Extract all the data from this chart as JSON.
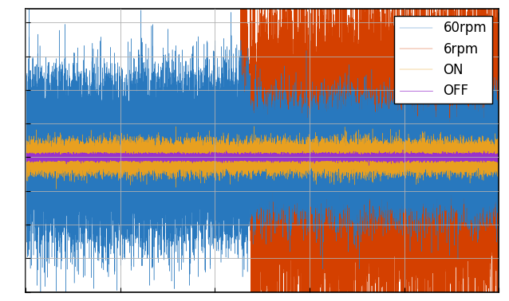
{
  "n_points": 50000,
  "legend_labels": [
    "60rpm",
    "6rpm",
    "ON",
    "OFF"
  ],
  "colors": [
    "#2878be",
    "#d44000",
    "#e8a020",
    "#9932CC"
  ],
  "linewidths": [
    0.3,
    0.3,
    0.3,
    0.5
  ],
  "background_color": "#ffffff",
  "grid_color": "#b0b0b0",
  "figsize": [
    6.38,
    3.78
  ],
  "dpi": 100,
  "signal_params": {
    "blue_amp1": 0.28,
    "blue_amp2": 0.2,
    "blue_transition": 0.475,
    "orange_amp1": 0.13,
    "orange_amp2": 0.52,
    "orange_spike_amp": 1.35,
    "orange_transition": 0.475,
    "yellow_amp": 0.055,
    "purple_amp": 0.012
  },
  "ylim": [
    -1.0,
    1.1
  ],
  "xlim": [
    0,
    1
  ]
}
